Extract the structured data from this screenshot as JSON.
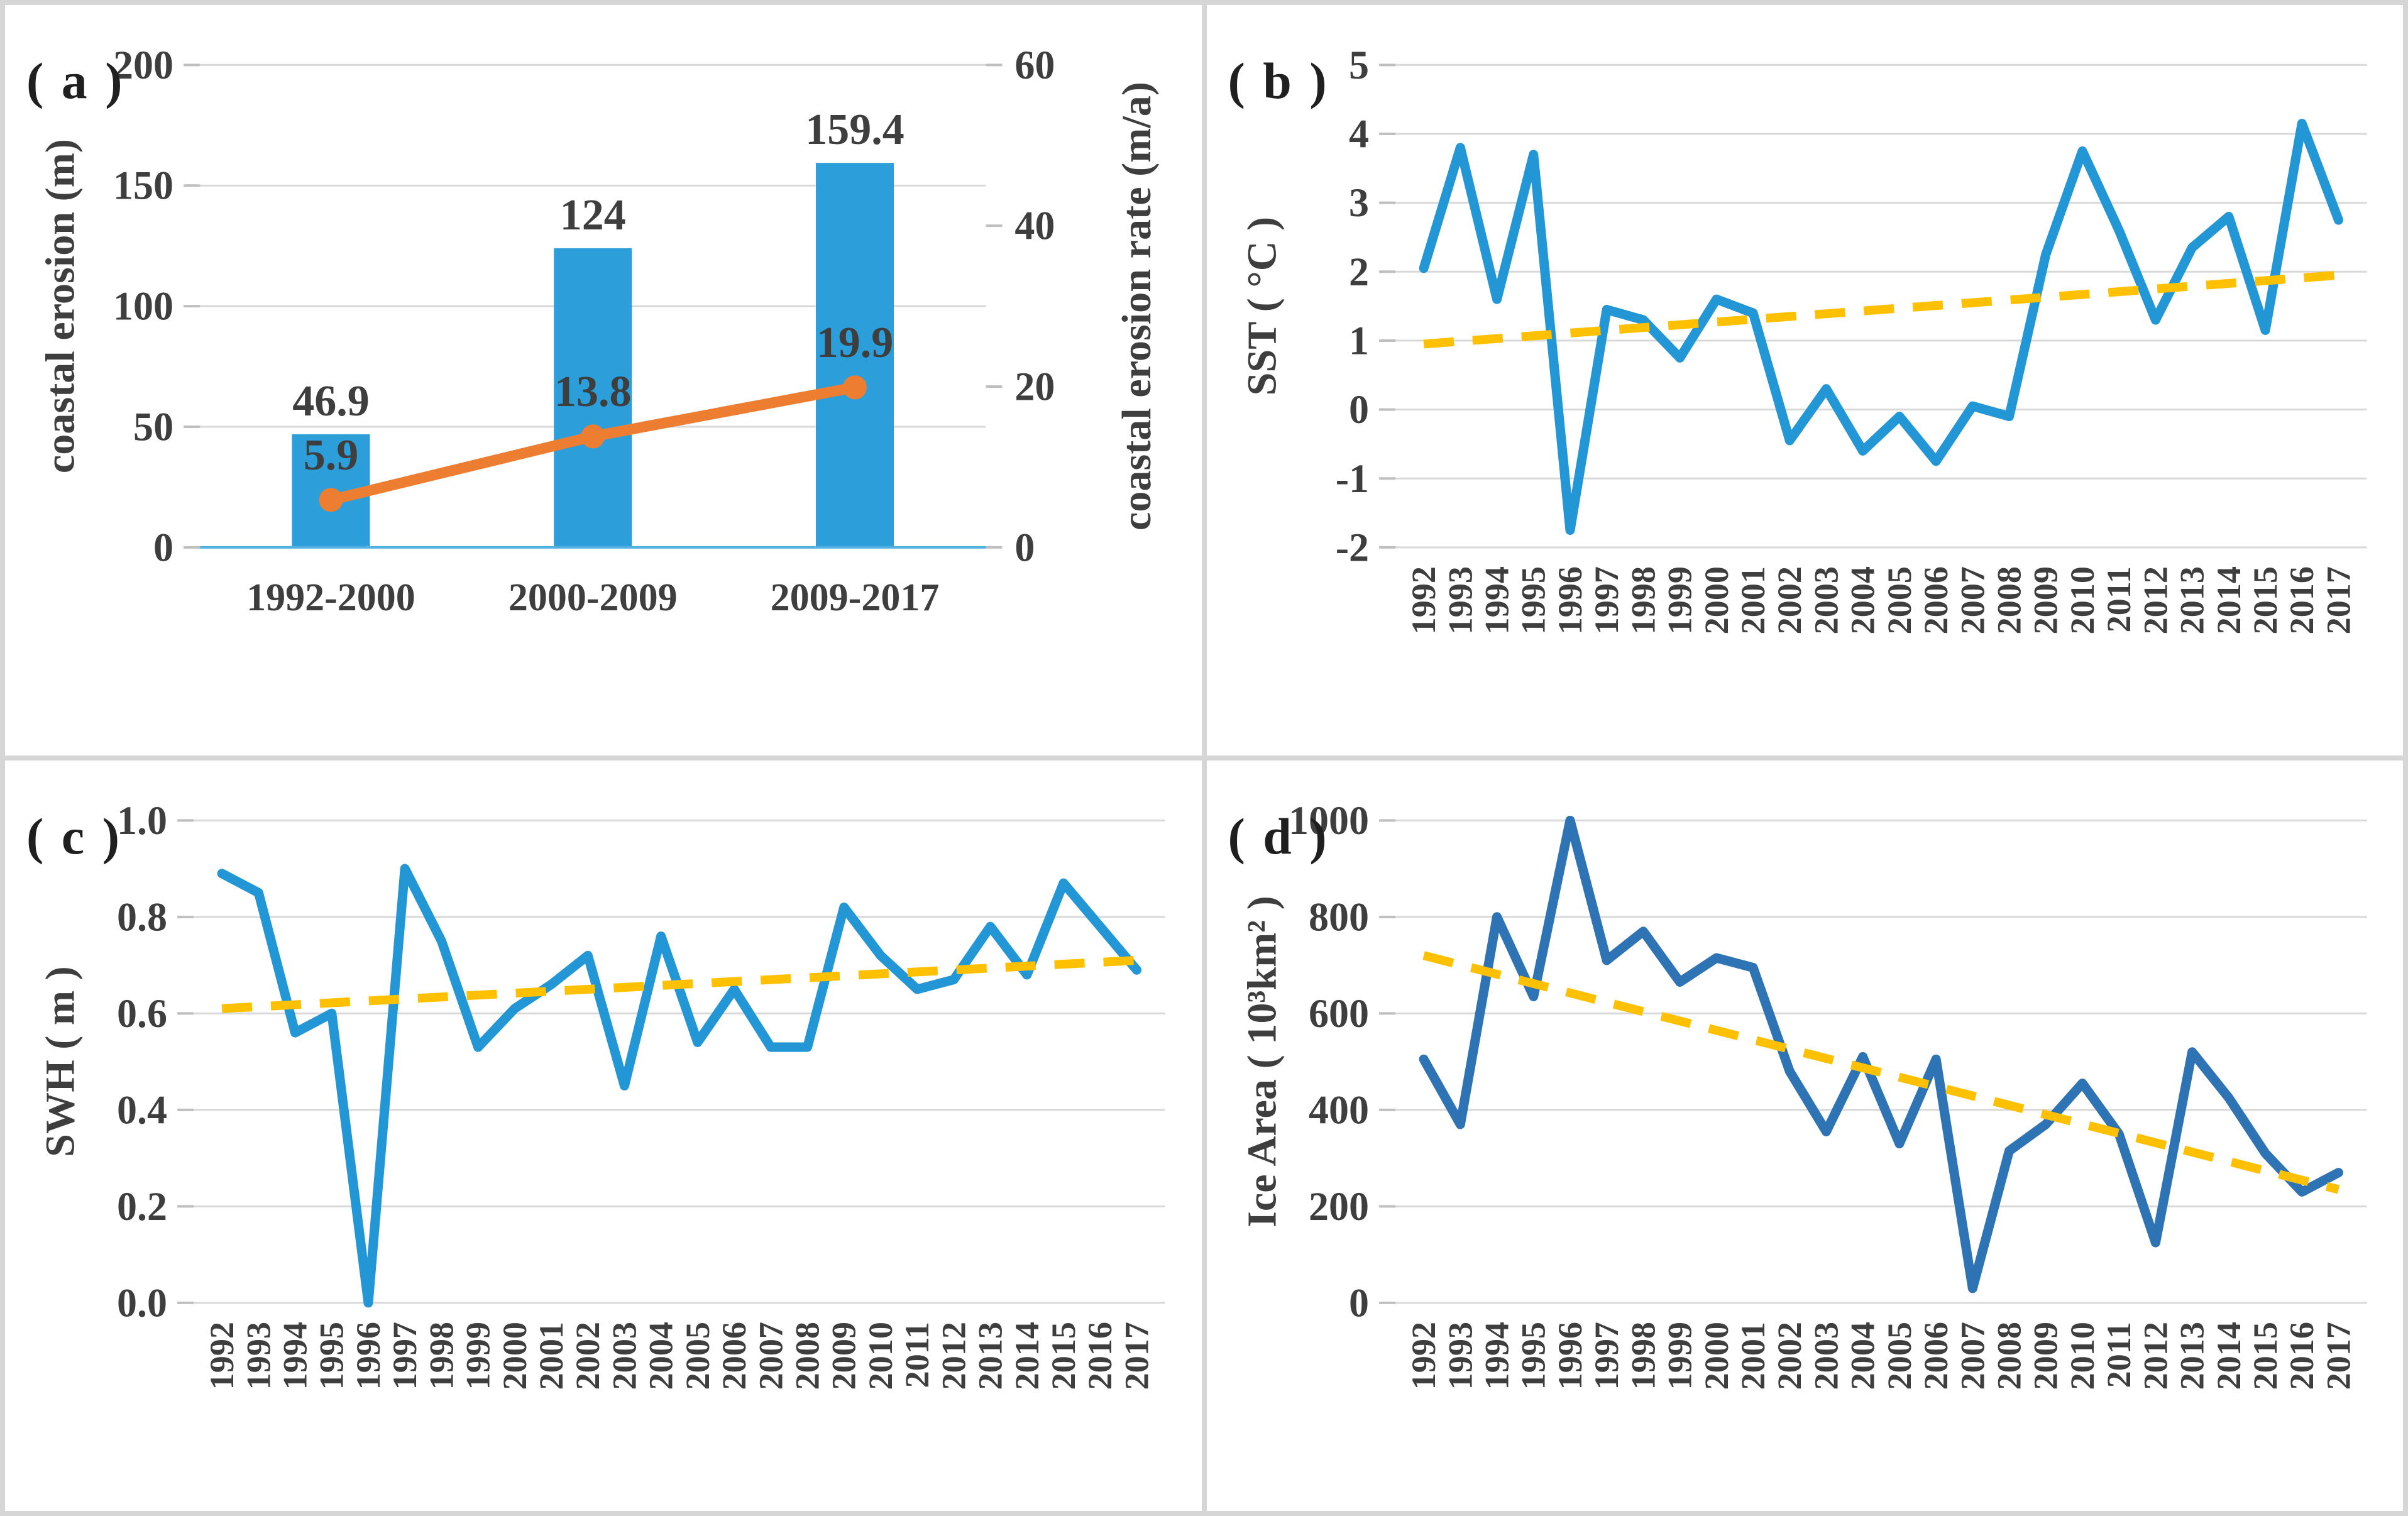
{
  "colors": {
    "bar_blue": "#2c9fdb",
    "light_line_blue": "#2397d6",
    "dark_line_blue": "#2e74b5",
    "orange": "#ed7d31",
    "trend_gold": "#ffc000",
    "gridline": "#d9d9d9",
    "tick_mark": "#bfbfbf",
    "axis_baseline_blue": "#54b0e2",
    "text_dark": "#3e3e3e",
    "label_dark": "#262626",
    "panel_border": "#d6d6d6"
  },
  "chart_data": [
    {
      "panel": "a",
      "panel_label": "( a )",
      "type": "bar+line",
      "categories": [
        "1992-2000",
        "2000-2009",
        "2009-2017"
      ],
      "bars": {
        "name": "coastal erosion",
        "values": [
          46.9,
          124,
          159.4
        ],
        "labels": [
          "46.9",
          "124",
          "159.4"
        ]
      },
      "line": {
        "name": "coastal erosion rate",
        "values": [
          5.9,
          13.8,
          19.9
        ],
        "labels": [
          "5.9",
          "13.8",
          "19.9"
        ]
      },
      "y_left": {
        "label": "coastal erosion (m)",
        "min": 0,
        "max": 200,
        "ticks": [
          0,
          50,
          100,
          150,
          200
        ],
        "tick_labels": [
          "0",
          "50",
          "100",
          "150",
          "200"
        ]
      },
      "y_right": {
        "label": "coastal erosion rate (m/a)",
        "min": 0,
        "max": 60,
        "ticks": [
          0,
          20,
          40,
          60
        ],
        "tick_labels": [
          "0",
          "20",
          "40",
          "60"
        ]
      },
      "grid": true,
      "legend": "none"
    },
    {
      "panel": "b",
      "panel_label": "( b )",
      "type": "line",
      "x": [
        "1992",
        "1993",
        "1994",
        "1995",
        "1996",
        "1997",
        "1998",
        "1999",
        "2000",
        "2001",
        "2002",
        "2003",
        "2004",
        "2005",
        "2006",
        "2007",
        "2008",
        "2009",
        "2010",
        "2011",
        "2012",
        "2013",
        "2014",
        "2015",
        "2016",
        "2017"
      ],
      "series": [
        {
          "name": "SST",
          "values": [
            2.05,
            3.8,
            1.6,
            3.7,
            -1.75,
            1.45,
            1.3,
            0.75,
            1.6,
            1.4,
            -0.45,
            0.3,
            -0.6,
            -0.1,
            -0.75,
            0.05,
            -0.1,
            2.25,
            3.75,
            2.6,
            1.3,
            2.35,
            2.8,
            1.15,
            4.15,
            2.75
          ]
        }
      ],
      "trend": {
        "name": "linear trend",
        "start": 0.95,
        "end": 1.95
      },
      "ylabel": "SST ( °C )",
      "ylim": [
        -2,
        5
      ],
      "yticks": [
        5,
        4,
        3,
        2,
        1,
        0,
        -1,
        -2
      ],
      "ytick_labels": [
        "5",
        "4",
        "3",
        "2",
        "1",
        "0",
        "-1",
        "-2"
      ],
      "grid": true,
      "legend": "none"
    },
    {
      "panel": "c",
      "panel_label": "( c )",
      "type": "line",
      "x": [
        "1992",
        "1993",
        "1994",
        "1995",
        "1996",
        "1997",
        "1998",
        "1999",
        "2000",
        "2001",
        "2002",
        "2003",
        "2004",
        "2005",
        "2006",
        "2007",
        "2008",
        "2009",
        "2010",
        "2011",
        "2012",
        "2013",
        "2014",
        "2015",
        "2016",
        "2017"
      ],
      "series": [
        {
          "name": "SWH",
          "values": [
            0.89,
            0.85,
            0.56,
            0.6,
            0.0,
            0.9,
            0.75,
            0.53,
            0.61,
            0.66,
            0.72,
            0.45,
            0.76,
            0.54,
            0.65,
            0.53,
            0.53,
            0.82,
            0.72,
            0.65,
            0.67,
            0.78,
            0.68,
            0.87,
            0.78,
            0.69
          ]
        }
      ],
      "trend": {
        "name": "linear trend",
        "start": 0.61,
        "end": 0.71
      },
      "ylabel": "SWH ( m )",
      "ylim": [
        0,
        1
      ],
      "yticks": [
        1.0,
        0.8,
        0.6,
        0.4,
        0.2,
        0.0
      ],
      "ytick_labels": [
        "1.0",
        "0.8",
        "0.6",
        "0.4",
        "0.2",
        "0.0"
      ],
      "grid": true,
      "legend": "none"
    },
    {
      "panel": "d",
      "panel_label": "( d )",
      "type": "line",
      "x": [
        "1992",
        "1993",
        "1994",
        "1995",
        "1996",
        "1997",
        "1998",
        "1999",
        "2000",
        "2001",
        "2002",
        "2003",
        "2004",
        "2005",
        "2006",
        "2007",
        "2008",
        "2009",
        "2010",
        "2011",
        "2012",
        "2013",
        "2014",
        "2015",
        "2016",
        "2017"
      ],
      "series": [
        {
          "name": "Ice Area",
          "values": [
            505,
            370,
            800,
            635,
            1000,
            710,
            770,
            665,
            715,
            695,
            480,
            355,
            510,
            330,
            505,
            30,
            315,
            370,
            455,
            350,
            125,
            520,
            425,
            310,
            230,
            270
          ]
        }
      ],
      "trend": {
        "name": "linear trend",
        "start": 720,
        "end": 235
      },
      "ylabel": "Ice Area ( 10³km² )",
      "ylim": [
        0,
        1000
      ],
      "yticks": [
        1000,
        800,
        600,
        400,
        200,
        0
      ],
      "ytick_labels": [
        "1000",
        "800",
        "600",
        "400",
        "200",
        "0"
      ],
      "grid": true,
      "legend": "none"
    }
  ]
}
